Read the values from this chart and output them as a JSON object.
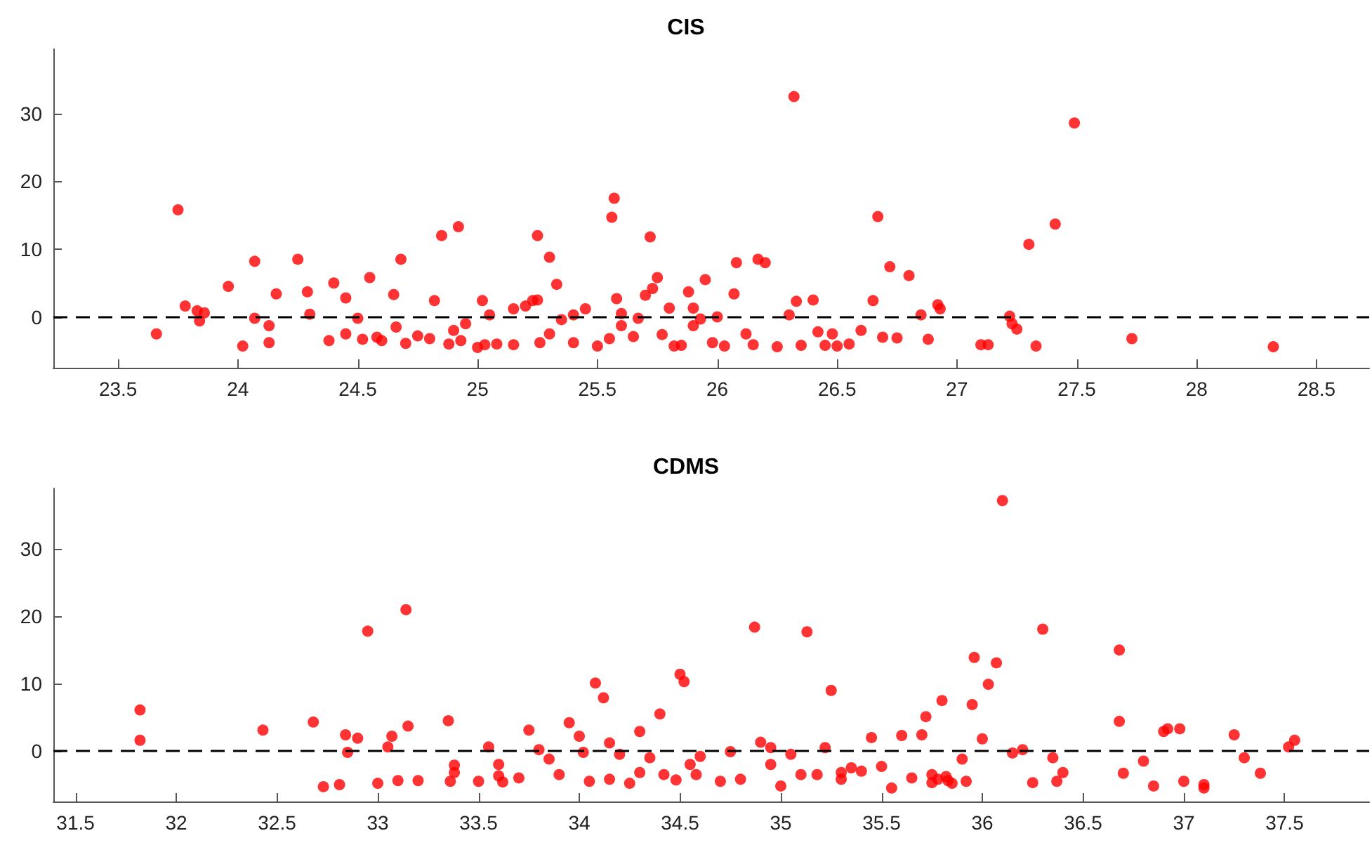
{
  "chart_data": [
    {
      "type": "scatter",
      "title": "CIS",
      "xlim": [
        23.23,
        28.72
      ],
      "ylim": [
        -7.5,
        39.5
      ],
      "xticks": [
        23.5,
        24,
        24.5,
        25,
        25.5,
        26,
        26.5,
        27,
        27.5,
        28,
        28.5
      ],
      "yticks": [
        0,
        10,
        20,
        30
      ],
      "grid": false,
      "marker": "circle",
      "ref_lines": [
        {
          "axis": "y",
          "value": 0,
          "color": "#000000",
          "line_style": "dashed"
        }
      ],
      "series": [
        {
          "color": "#ff0000",
          "x": [
            23.66,
            23.75,
            23.78,
            23.83,
            23.84,
            23.86,
            23.96,
            24.02,
            24.07,
            24.07,
            24.13,
            24.13,
            24.16,
            24.25,
            24.29,
            24.3,
            24.38,
            24.4,
            24.45,
            24.45,
            24.5,
            24.52,
            24.55,
            24.58,
            24.6,
            24.65,
            24.68,
            24.66,
            24.7,
            24.75,
            24.8,
            24.82,
            24.85,
            24.88,
            24.9,
            24.92,
            24.93,
            24.95,
            25.02,
            25.03,
            25.05,
            25.08,
            25.15,
            25.2,
            25.23,
            25.25,
            25.26,
            25.3,
            25.33,
            25.35,
            25.4,
            25.45,
            25.5,
            25.56,
            25.57,
            25.58,
            25.65,
            25.7,
            25.72,
            25.73,
            25.75,
            25.8,
            25.85,
            25.9,
            25.93,
            25.95,
            25.98,
            26.03,
            26.07,
            26.08,
            26.12,
            26.17,
            26.2,
            26.25,
            26.3,
            26.32,
            26.33,
            26.4,
            26.35,
            26.42,
            26.48,
            26.5,
            26.55,
            26.6,
            26.65,
            26.67,
            26.69,
            26.72,
            26.75,
            26.8,
            26.85,
            26.88,
            26.92,
            26.93,
            27.1,
            27.13,
            27.22,
            27.23,
            27.25,
            27.3,
            27.33,
            27.41,
            27.49,
            27.73,
            28.32,
            25.55,
            25.6,
            25.67,
            25.77,
            25.82,
            25.88,
            25.9,
            25.6,
            25.4,
            25.25,
            25.15,
            25.0,
            25.3,
            26.15,
            26.0,
            26.45
          ],
          "values": [
            -2.5,
            15.8,
            1.6,
            0.9,
            -0.6,
            0.6,
            4.5,
            -4.3,
            8.2,
            -0.2,
            -1.3,
            -3.8,
            3.4,
            8.5,
            3.7,
            0.4,
            -3.5,
            5,
            2.8,
            -2.5,
            -0.2,
            -3.3,
            5.8,
            -3,
            -3.5,
            3.3,
            8.5,
            -1.5,
            -3.9,
            -2.8,
            -3.2,
            2.4,
            12,
            -4,
            -2,
            13.3,
            -3.5,
            -1,
            2.4,
            -4.1,
            0.3,
            -4,
            -4.1,
            1.6,
            2.4,
            12,
            -3.8,
            8.8,
            4.8,
            -0.4,
            -3.8,
            1.2,
            -4.3,
            14.7,
            17.5,
            2.7,
            -2.9,
            3.2,
            11.8,
            4.2,
            5.8,
            1.3,
            -4.2,
            -1.3,
            -0.3,
            5.5,
            -3.8,
            -4.3,
            3.4,
            8,
            -2.5,
            8.5,
            8,
            -4.4,
            0.3,
            32.5,
            2.3,
            2.5,
            -4.2,
            -2.2,
            -2.5,
            -4.3,
            -4,
            -2,
            2.4,
            14.8,
            -3,
            7.4,
            -3.1,
            6.1,
            0.3,
            -3.3,
            1.8,
            1.2,
            -4.1,
            -4.1,
            0.1,
            -1,
            -1.8,
            10.7,
            -4.3,
            13.7,
            28.6,
            -3.2,
            -4.4,
            -3.2,
            -1.3,
            -0.2,
            -2.6,
            -4.3,
            3.7,
            1.3,
            0.5,
            0.3,
            2.5,
            1.2,
            -4.5,
            -2.5,
            -4.1,
            0,
            -4.2
          ]
        }
      ]
    },
    {
      "type": "scatter",
      "title": "CDMS",
      "xlim": [
        31.39,
        37.92
      ],
      "ylim": [
        -7.5,
        39
      ],
      "xticks": [
        31.5,
        32,
        32.5,
        33,
        33.5,
        34,
        34.5,
        35,
        35.5,
        36,
        36.5,
        37,
        37.5
      ],
      "yticks": [
        0,
        10,
        20,
        30
      ],
      "grid": false,
      "marker": "circle",
      "ref_lines": [
        {
          "axis": "y",
          "value": 0,
          "color": "#000000",
          "line_style": "dashed"
        }
      ],
      "series": [
        {
          "color": "#ff0000",
          "x": [
            31.82,
            31.82,
            32.43,
            32.68,
            32.73,
            32.81,
            32.84,
            32.85,
            32.9,
            32.95,
            33.0,
            33.05,
            33.07,
            33.1,
            33.14,
            33.15,
            33.2,
            33.35,
            33.36,
            33.38,
            33.38,
            33.5,
            33.55,
            33.6,
            33.62,
            33.7,
            33.75,
            33.8,
            33.85,
            33.9,
            33.95,
            34.0,
            34.02,
            34.05,
            34.08,
            34.12,
            34.15,
            34.2,
            34.25,
            34.3,
            34.35,
            34.4,
            34.42,
            34.48,
            34.5,
            34.52,
            34.55,
            34.58,
            34.6,
            34.7,
            34.75,
            34.8,
            34.87,
            34.9,
            34.95,
            35.0,
            35.05,
            35.1,
            35.13,
            35.18,
            35.22,
            35.25,
            35.3,
            35.35,
            35.4,
            35.45,
            35.5,
            35.55,
            35.6,
            35.65,
            35.7,
            35.72,
            35.75,
            35.8,
            35.82,
            35.85,
            35.9,
            35.92,
            35.95,
            35.96,
            36.0,
            36.03,
            36.07,
            36.1,
            36.15,
            36.2,
            36.25,
            36.3,
            36.35,
            36.37,
            36.4,
            36.68,
            36.68,
            36.7,
            36.8,
            36.85,
            36.9,
            36.92,
            36.98,
            37.0,
            37.1,
            37.1,
            37.25,
            37.3,
            37.38,
            37.52,
            37.55,
            35.75,
            35.78,
            35.83,
            34.3,
            33.6,
            34.15,
            35.3,
            34.95
          ],
          "values": [
            6.1,
            1.6,
            3.1,
            4.3,
            -5.3,
            -5,
            2.4,
            -0.2,
            1.9,
            17.8,
            -4.8,
            0.6,
            2.2,
            -4.4,
            21,
            3.7,
            -4.4,
            4.5,
            -4.5,
            -2.1,
            -3.2,
            -4.5,
            0.6,
            -2,
            -4.6,
            -4,
            3.1,
            0.2,
            -1.2,
            -3.5,
            4.2,
            2.2,
            -0.2,
            -4.5,
            10.1,
            7.9,
            1.2,
            -0.5,
            -4.8,
            2.9,
            -1,
            5.5,
            -3.5,
            -4.3,
            11.4,
            10.3,
            -2,
            -3.5,
            -0.8,
            -4.5,
            -0.1,
            -4.2,
            18.4,
            1.3,
            -2,
            -5.2,
            -0.5,
            -3.5,
            17.7,
            -3.5,
            0.5,
            9,
            -4.2,
            -2.5,
            -3,
            2,
            -2.3,
            -5.5,
            2.3,
            -4,
            2.4,
            5.1,
            -3.5,
            7.5,
            -3.8,
            -4.8,
            -1.2,
            -4.5,
            6.9,
            13.9,
            1.8,
            9.9,
            13.1,
            37.2,
            -0.3,
            0.2,
            -4.7,
            18.1,
            -1,
            -4.5,
            -3.2,
            15,
            4.4,
            -3.3,
            -1.5,
            -5.2,
            2.9,
            3.3,
            3.3,
            -4.5,
            -5,
            -5.5,
            2.4,
            -1,
            -3.3,
            0.6,
            1.6,
            -4.7,
            -4.2,
            -4.4,
            -3.2,
            -3.7,
            -4.2,
            -3.2,
            0.5
          ]
        }
      ]
    }
  ]
}
